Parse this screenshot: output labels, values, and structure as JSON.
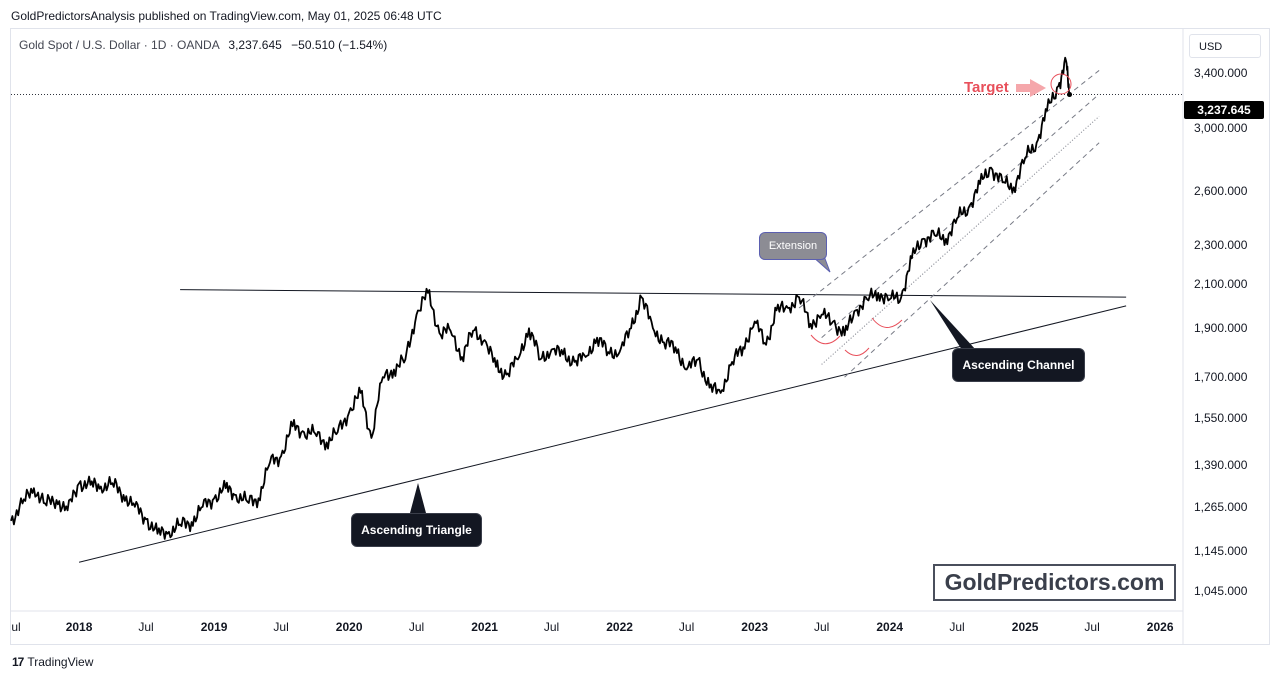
{
  "publisher": "GoldPredictorsAnalysis published on TradingView.com, May 01, 2025 06:48 UTC",
  "symbol": {
    "name": "Gold Spot / U.S. Dollar · 1D · OANDA",
    "last": "3,237.645",
    "change": "−50.510 (−1.54%)"
  },
  "currency": "USD",
  "price_badge": "3,237.645",
  "footer": {
    "logo": "17",
    "brand": "TradingView"
  },
  "watermark": "GoldPredictors.com",
  "annotations": {
    "ascending_triangle": "Ascending Triangle",
    "ascending_channel": "Ascending Channel",
    "extension": "Extension",
    "target": "Target"
  },
  "colors": {
    "price": "#000000",
    "line": "#131722",
    "channel": "#787b86",
    "target": "#e8505b",
    "curve": "#e8505b"
  },
  "chart_data": {
    "type": "line",
    "title": "",
    "xlabel": "",
    "ylabel": "",
    "y_scale": "log",
    "ylim": [
      1000,
      3750
    ],
    "y_ticks": [
      3400,
      3000,
      2600,
      2300,
      2100,
      1900,
      1700,
      1550,
      1390,
      1265,
      1145,
      1045
    ],
    "y_tick_labels": [
      "3,400.000",
      "3,000.000",
      "2,600.000",
      "2,300.000",
      "2,100.000",
      "1,900.000",
      "1,700.000",
      "1,550.000",
      "1,390.000",
      "1,265.000",
      "1,145.000",
      "1,045.000"
    ],
    "x_range": [
      "2017-07-01",
      "2026-03-01"
    ],
    "x_ticks": [
      {
        "date": "2017-07-01",
        "label": "ul",
        "major": false
      },
      {
        "date": "2018-01-01",
        "label": "2018",
        "major": true
      },
      {
        "date": "2018-07-01",
        "label": "Jul",
        "major": false
      },
      {
        "date": "2019-01-01",
        "label": "2019",
        "major": true
      },
      {
        "date": "2019-07-01",
        "label": "Jul",
        "major": false
      },
      {
        "date": "2020-01-01",
        "label": "2020",
        "major": true
      },
      {
        "date": "2020-07-01",
        "label": "Jul",
        "major": false
      },
      {
        "date": "2021-01-01",
        "label": "2021",
        "major": true
      },
      {
        "date": "2021-07-01",
        "label": "Jul",
        "major": false
      },
      {
        "date": "2022-01-01",
        "label": "2022",
        "major": true
      },
      {
        "date": "2022-07-01",
        "label": "Jul",
        "major": false
      },
      {
        "date": "2023-01-01",
        "label": "2023",
        "major": true
      },
      {
        "date": "2023-07-01",
        "label": "Jul",
        "major": false
      },
      {
        "date": "2024-01-01",
        "label": "2024",
        "major": true
      },
      {
        "date": "2024-07-01",
        "label": "Jul",
        "major": false
      },
      {
        "date": "2025-01-01",
        "label": "2025",
        "major": true
      },
      {
        "date": "2025-07-01",
        "label": "Jul",
        "major": false
      },
      {
        "date": "2026-01-01",
        "label": "2026",
        "major": true
      }
    ],
    "series": [
      {
        "points": [
          [
            "2017-07-01",
            1225
          ],
          [
            "2017-08-01",
            1275
          ],
          [
            "2017-09-01",
            1320
          ],
          [
            "2017-10-01",
            1275
          ],
          [
            "2017-11-01",
            1285
          ],
          [
            "2017-12-01",
            1255
          ],
          [
            "2018-01-01",
            1335
          ],
          [
            "2018-02-01",
            1330
          ],
          [
            "2018-03-01",
            1325
          ],
          [
            "2018-04-01",
            1335
          ],
          [
            "2018-05-01",
            1300
          ],
          [
            "2018-06-01",
            1265
          ],
          [
            "2018-07-01",
            1230
          ],
          [
            "2018-08-01",
            1190
          ],
          [
            "2018-09-01",
            1195
          ],
          [
            "2018-10-01",
            1215
          ],
          [
            "2018-11-01",
            1222
          ],
          [
            "2018-12-01",
            1265
          ],
          [
            "2019-01-01",
            1290
          ],
          [
            "2019-02-01",
            1320
          ],
          [
            "2019-03-01",
            1300
          ],
          [
            "2019-04-01",
            1280
          ],
          [
            "2019-05-01",
            1290
          ],
          [
            "2019-06-01",
            1400
          ],
          [
            "2019-07-01",
            1420
          ],
          [
            "2019-08-01",
            1520
          ],
          [
            "2019-09-01",
            1500
          ],
          [
            "2019-10-01",
            1495
          ],
          [
            "2019-11-01",
            1465
          ],
          [
            "2019-12-01",
            1500
          ],
          [
            "2020-01-01",
            1570
          ],
          [
            "2020-02-01",
            1640
          ],
          [
            "2020-03-01",
            1480
          ],
          [
            "2020-04-01",
            1700
          ],
          [
            "2020-05-01",
            1730
          ],
          [
            "2020-06-01",
            1770
          ],
          [
            "2020-07-01",
            1960
          ],
          [
            "2020-08-01",
            2060
          ],
          [
            "2020-09-01",
            1880
          ],
          [
            "2020-10-01",
            1890
          ],
          [
            "2020-11-01",
            1780
          ],
          [
            "2020-12-01",
            1890
          ],
          [
            "2021-01-01",
            1850
          ],
          [
            "2021-02-01",
            1740
          ],
          [
            "2021-03-01",
            1710
          ],
          [
            "2021-04-01",
            1770
          ],
          [
            "2021-05-01",
            1900
          ],
          [
            "2021-06-01",
            1770
          ],
          [
            "2021-07-01",
            1810
          ],
          [
            "2021-08-01",
            1790
          ],
          [
            "2021-09-01",
            1760
          ],
          [
            "2021-10-01",
            1780
          ],
          [
            "2021-11-01",
            1860
          ],
          [
            "2021-12-01",
            1800
          ],
          [
            "2022-01-01",
            1800
          ],
          [
            "2022-02-01",
            1900
          ],
          [
            "2022-03-01",
            2040
          ],
          [
            "2022-04-01",
            1900
          ],
          [
            "2022-05-01",
            1840
          ],
          [
            "2022-06-01",
            1820
          ],
          [
            "2022-07-01",
            1730
          ],
          [
            "2022-08-01",
            1770
          ],
          [
            "2022-09-01",
            1660
          ],
          [
            "2022-10-01",
            1640
          ],
          [
            "2022-11-01",
            1760
          ],
          [
            "2022-12-01",
            1820
          ],
          [
            "2023-01-01",
            1930
          ],
          [
            "2023-02-01",
            1830
          ],
          [
            "2023-03-01",
            1980
          ],
          [
            "2023-04-01",
            1990
          ],
          [
            "2023-05-01",
            2040
          ],
          [
            "2023-06-01",
            1920
          ],
          [
            "2023-07-01",
            1960
          ],
          [
            "2023-08-01",
            1930
          ],
          [
            "2023-09-01",
            1870
          ],
          [
            "2023-10-01",
            1980
          ],
          [
            "2023-11-01",
            2030
          ],
          [
            "2023-12-01",
            2060
          ],
          [
            "2024-01-01",
            2030
          ],
          [
            "2024-02-01",
            2040
          ],
          [
            "2024-03-01",
            2230
          ],
          [
            "2024-04-01",
            2330
          ],
          [
            "2024-05-01",
            2350
          ],
          [
            "2024-06-01",
            2330
          ],
          [
            "2024-07-01",
            2440
          ],
          [
            "2024-08-01",
            2500
          ],
          [
            "2024-09-01",
            2640
          ],
          [
            "2024-10-01",
            2740
          ],
          [
            "2024-11-01",
            2650
          ],
          [
            "2024-12-01",
            2620
          ],
          [
            "2025-01-01",
            2800
          ],
          [
            "2025-02-01",
            2900
          ],
          [
            "2025-03-01",
            3120
          ],
          [
            "2025-04-01",
            3300
          ],
          [
            "2025-04-22",
            3490
          ],
          [
            "2025-05-01",
            3237
          ]
        ]
      }
    ],
    "lines": [
      {
        "name": "resistance",
        "style": "solid",
        "from": [
          "2018-10-01",
          2075
        ],
        "to": [
          "2025-10-01",
          2040
        ]
      },
      {
        "name": "rising-support",
        "style": "solid",
        "from": [
          "2018-01-01",
          1115
        ],
        "to": [
          "2025-10-01",
          2000
        ]
      },
      {
        "name": "channel-upper",
        "style": "dashed",
        "from": [
          "2023-05-01",
          1990
        ],
        "to": [
          "2025-07-20",
          3420
        ]
      },
      {
        "name": "channel-upper-mid",
        "style": "dashed",
        "from": [
          "2023-07-01",
          1860
        ],
        "to": [
          "2025-07-20",
          3240
        ]
      },
      {
        "name": "channel-mid",
        "style": "dotted",
        "from": [
          "2023-07-01",
          1750
        ],
        "to": [
          "2025-07-20",
          3080
        ]
      },
      {
        "name": "channel-lower",
        "style": "dashed",
        "from": [
          "2023-09-01",
          1700
        ],
        "to": [
          "2025-07-20",
          2900
        ]
      }
    ]
  }
}
